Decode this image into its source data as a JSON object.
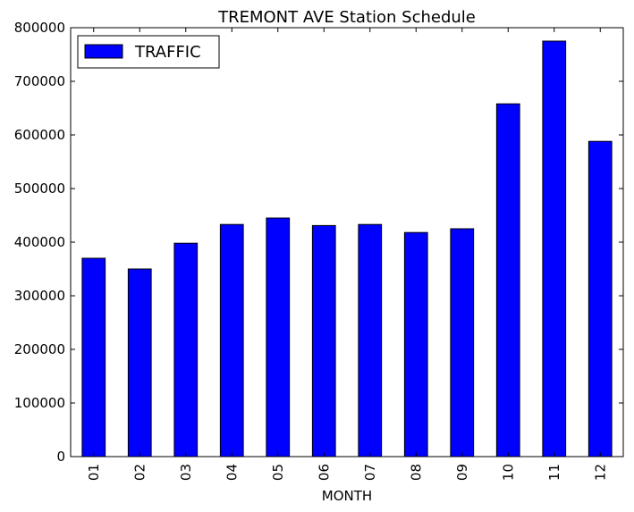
{
  "chart_data": {
    "type": "bar",
    "title": "TREMONT AVE Station Schedule",
    "xlabel": "MONTH",
    "ylabel": "",
    "categories": [
      "01",
      "02",
      "03",
      "04",
      "05",
      "06",
      "07",
      "08",
      "09",
      "10",
      "11",
      "12"
    ],
    "series": [
      {
        "name": "TRAFFIC",
        "values": [
          370000,
          350000,
          398000,
          433000,
          445000,
          431000,
          433000,
          418000,
          425000,
          658000,
          775000,
          588000
        ],
        "color": "#0000ff"
      }
    ],
    "ylim": [
      0,
      800000
    ],
    "yticks": [
      0,
      100000,
      200000,
      300000,
      400000,
      500000,
      600000,
      700000,
      800000
    ],
    "ytick_labels": [
      "0",
      "100000",
      "200000",
      "300000",
      "400000",
      "500000",
      "600000",
      "700000",
      "800000"
    ],
    "grid": false,
    "legend_position": "top-left"
  }
}
